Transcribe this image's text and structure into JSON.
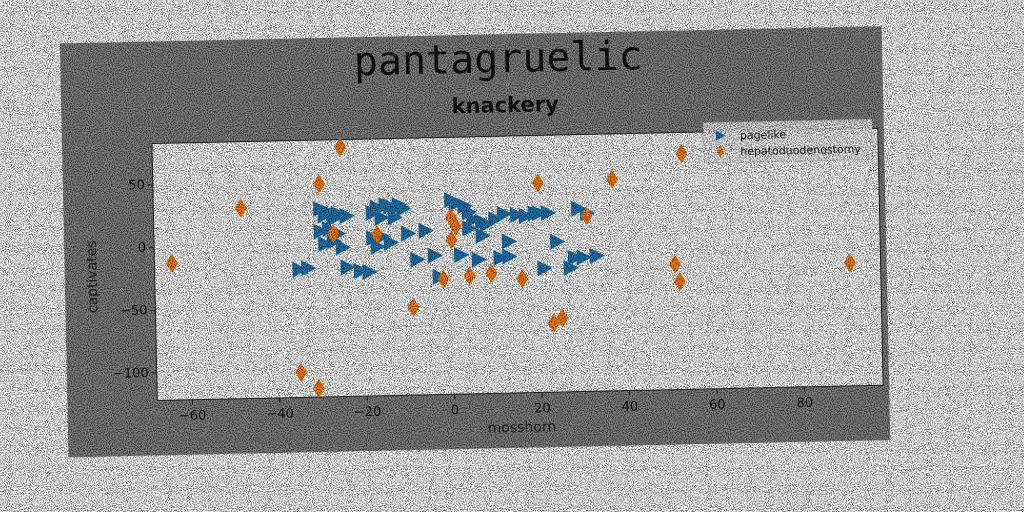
{
  "chart_data": {
    "type": "scatter",
    "title": "pantagruelic",
    "subtitle": "knackery",
    "xlabel": "mosshorn",
    "ylabel": "captivates",
    "xlim": [
      -68,
      98
    ],
    "ylim": [
      -122,
      83
    ],
    "xticks": [
      -60,
      -40,
      -20,
      0,
      20,
      40,
      60,
      80
    ],
    "yticks": [
      50,
      0,
      -50,
      -100
    ],
    "grid": false,
    "legend_position": "top-right",
    "colors": {
      "figure_bg": "#808080",
      "axes_bg": "#ffffff"
    },
    "series": [
      {
        "name": "pagelike",
        "marker": "triangle-right",
        "color": "#1f77b4",
        "points": [
          [
            -30,
            28
          ],
          [
            -29,
            23
          ],
          [
            -28,
            25
          ],
          [
            -27,
            20
          ],
          [
            -26,
            24
          ],
          [
            -24,
            22
          ],
          [
            -30,
            10
          ],
          [
            -28,
            12
          ],
          [
            -26,
            8
          ],
          [
            -29,
            0
          ],
          [
            -27,
            2
          ],
          [
            -25,
            -3
          ],
          [
            -35,
            -20
          ],
          [
            -33,
            -19
          ],
          [
            -24,
            -19
          ],
          [
            -21,
            -22
          ],
          [
            -19,
            -23
          ],
          [
            -18,
            24
          ],
          [
            -17,
            28
          ],
          [
            -15,
            30
          ],
          [
            -14,
            29
          ],
          [
            -13,
            27
          ],
          [
            -12,
            30
          ],
          [
            -11,
            27
          ],
          [
            -16,
            20
          ],
          [
            -13,
            20
          ],
          [
            -18,
            4
          ],
          [
            -16,
            5
          ],
          [
            -14,
            0
          ],
          [
            -17,
            -3
          ],
          [
            -10,
            7
          ],
          [
            -6,
            9
          ],
          [
            -8,
            -14
          ],
          [
            -4,
            -11
          ],
          [
            -3,
            -28
          ],
          [
            0,
            33
          ],
          [
            1,
            30
          ],
          [
            3,
            28
          ],
          [
            4,
            23
          ],
          [
            5,
            17
          ],
          [
            7,
            15
          ],
          [
            8,
            13
          ],
          [
            10,
            17
          ],
          [
            12,
            21
          ],
          [
            15,
            20
          ],
          [
            17,
            19
          ],
          [
            19,
            21
          ],
          [
            20,
            21
          ],
          [
            22,
            21
          ],
          [
            29,
            24
          ],
          [
            31,
            20
          ],
          [
            4,
            10
          ],
          [
            7,
            4
          ],
          [
            13,
            -1
          ],
          [
            2,
            -11
          ],
          [
            6,
            -15
          ],
          [
            11,
            -14
          ],
          [
            13,
            -13
          ],
          [
            21,
            -23
          ],
          [
            24,
            -2
          ],
          [
            27,
            -23
          ],
          [
            28,
            -15
          ],
          [
            30,
            -15
          ],
          [
            33,
            -14
          ]
        ]
      },
      {
        "name": "hepatoduodenostomy",
        "marker": "diamond",
        "color": "#ff7f0e",
        "points": [
          [
            -64,
            -13
          ],
          [
            -48,
            30
          ],
          [
            -35,
            -102
          ],
          [
            -31,
            -115
          ],
          [
            -30,
            48
          ],
          [
            -27,
            8
          ],
          [
            -25,
            77
          ],
          [
            -17,
            7
          ],
          [
            -9,
            -52
          ],
          [
            -2,
            -30
          ],
          [
            0,
            19
          ],
          [
            0,
            1
          ],
          [
            1,
            12
          ],
          [
            4,
            -28
          ],
          [
            9,
            -26
          ],
          [
            16,
            -31
          ],
          [
            20,
            45
          ],
          [
            23,
            -67
          ],
          [
            25,
            -63
          ],
          [
            31,
            18
          ],
          [
            37,
            47
          ],
          [
            51,
            -22
          ],
          [
            52,
            -36
          ],
          [
            53,
            66
          ],
          [
            91,
            -24
          ]
        ]
      }
    ]
  }
}
